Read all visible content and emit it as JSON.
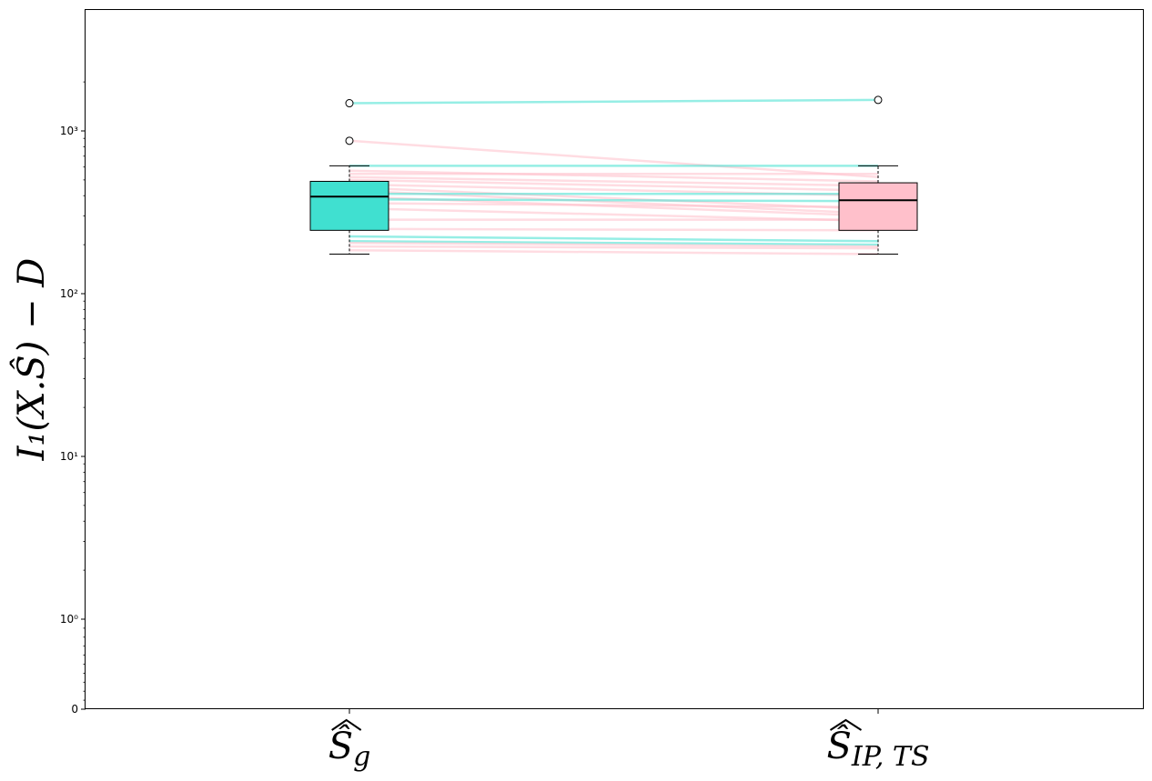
{
  "chart_data": {
    "type": "box",
    "y_scale": "symlog",
    "ylim": [
      0,
      2800
    ],
    "ylabel": "I₁(X.Ŝ) − D",
    "grid": false,
    "legend": "none",
    "y_ticks": [
      {
        "value": 0,
        "label": "0"
      },
      {
        "value": 1,
        "label": "10⁰"
      },
      {
        "value": 10,
        "label": "10¹"
      },
      {
        "value": 100,
        "label": "10²"
      },
      {
        "value": 1000,
        "label": "10³"
      }
    ],
    "categories": [
      {
        "name": "Ŝ_g",
        "label_main": "Ŝ",
        "label_sub": "g"
      },
      {
        "name": "Ŝ_IP,TS",
        "label_main": "Ŝ",
        "label_sub": "IP, TS"
      }
    ],
    "boxes": [
      {
        "category": "Ŝ_g",
        "whisker_low": 175,
        "q1": 245,
        "median": 395,
        "q3": 490,
        "whisker_high": 610,
        "fliers": [
          1480,
          870
        ],
        "color": "#40e0d0"
      },
      {
        "category": "Ŝ_IP,TS",
        "whisker_low": 175,
        "q1": 245,
        "median": 375,
        "q3": 480,
        "whisker_high": 610,
        "fliers": [
          1550
        ],
        "color": "#ffc0cb"
      }
    ],
    "pairs": [
      {
        "from": 1480,
        "to": 1550,
        "color": "#40e0d0"
      },
      {
        "from": 870,
        "to": 520,
        "color": "#ffc0cb"
      },
      {
        "from": 610,
        "to": 610,
        "color": "#40e0d0"
      },
      {
        "from": 570,
        "to": 490,
        "color": "#ffc0cb"
      },
      {
        "from": 545,
        "to": 545,
        "color": "#ffc0cb"
      },
      {
        "from": 520,
        "to": 460,
        "color": "#ffc0cb"
      },
      {
        "from": 500,
        "to": 430,
        "color": "#ffc0cb"
      },
      {
        "from": 470,
        "to": 400,
        "color": "#ffc0cb"
      },
      {
        "from": 450,
        "to": 330,
        "color": "#ffc0cb"
      },
      {
        "from": 430,
        "to": 310,
        "color": "#ffc0cb"
      },
      {
        "from": 410,
        "to": 410,
        "color": "#40e0d0"
      },
      {
        "from": 395,
        "to": 300,
        "color": "#ffc0cb"
      },
      {
        "from": 380,
        "to": 370,
        "color": "#40e0d0"
      },
      {
        "from": 360,
        "to": 340,
        "color": "#ffc0cb"
      },
      {
        "from": 335,
        "to": 280,
        "color": "#ffc0cb"
      },
      {
        "from": 285,
        "to": 285,
        "color": "#ffc0cb"
      },
      {
        "from": 250,
        "to": 245,
        "color": "#ffc0cb"
      },
      {
        "from": 225,
        "to": 210,
        "color": "#40e0d0"
      },
      {
        "from": 210,
        "to": 200,
        "color": "#40e0d0"
      },
      {
        "from": 205,
        "to": 195,
        "color": "#ffc0cb"
      },
      {
        "from": 195,
        "to": 190,
        "color": "#ffc0cb"
      },
      {
        "from": 185,
        "to": 175,
        "color": "#ffc0cb"
      }
    ]
  }
}
